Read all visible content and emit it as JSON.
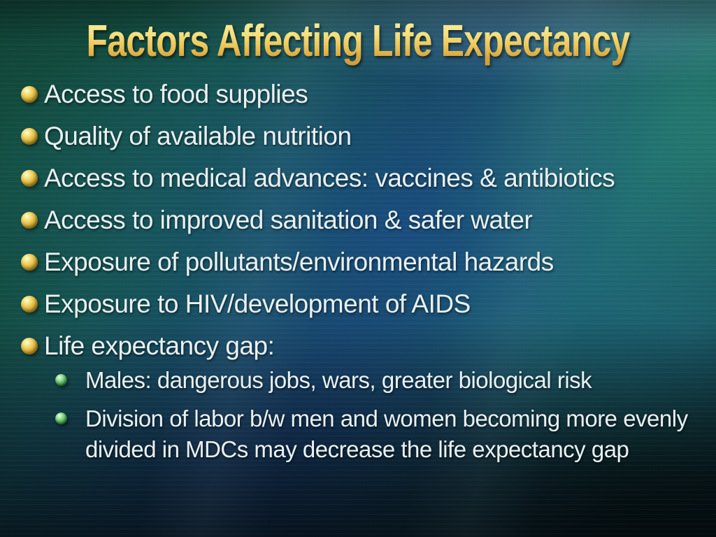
{
  "slide": {
    "title": "Factors Affecting Life Expectancy",
    "bullets": [
      "Access to food supplies",
      "Quality of available nutrition",
      "Access to medical advances: vaccines & antibiotics",
      "Access to improved sanitation & safer water",
      "Exposure of pollutants/environmental hazards",
      "Exposure to HIV/development of AIDS",
      "Life expectancy gap:"
    ],
    "sub_bullets": [
      "Males: dangerous jobs, wars, greater biological risk",
      "Division of labor b/w men and women becoming more evenly divided in MDCs may decrease the life expectancy gap"
    ],
    "icons": {
      "level1_bullet": "gold-sphere-bullet-icon",
      "level2_bullet": "green-sphere-bullet-icon"
    },
    "colors": {
      "title_gold_top": "#fbf2a6",
      "title_gold_bottom": "#cf9b38",
      "body_text": "#e9f1f3",
      "bullet_gold": "#e2bd46",
      "bullet_green": "#4aa858",
      "background_green": "#155148",
      "background_blue": "#173f5e",
      "background_teal": "#1a5f58",
      "background_dark_navy": "#0c2c31"
    }
  }
}
